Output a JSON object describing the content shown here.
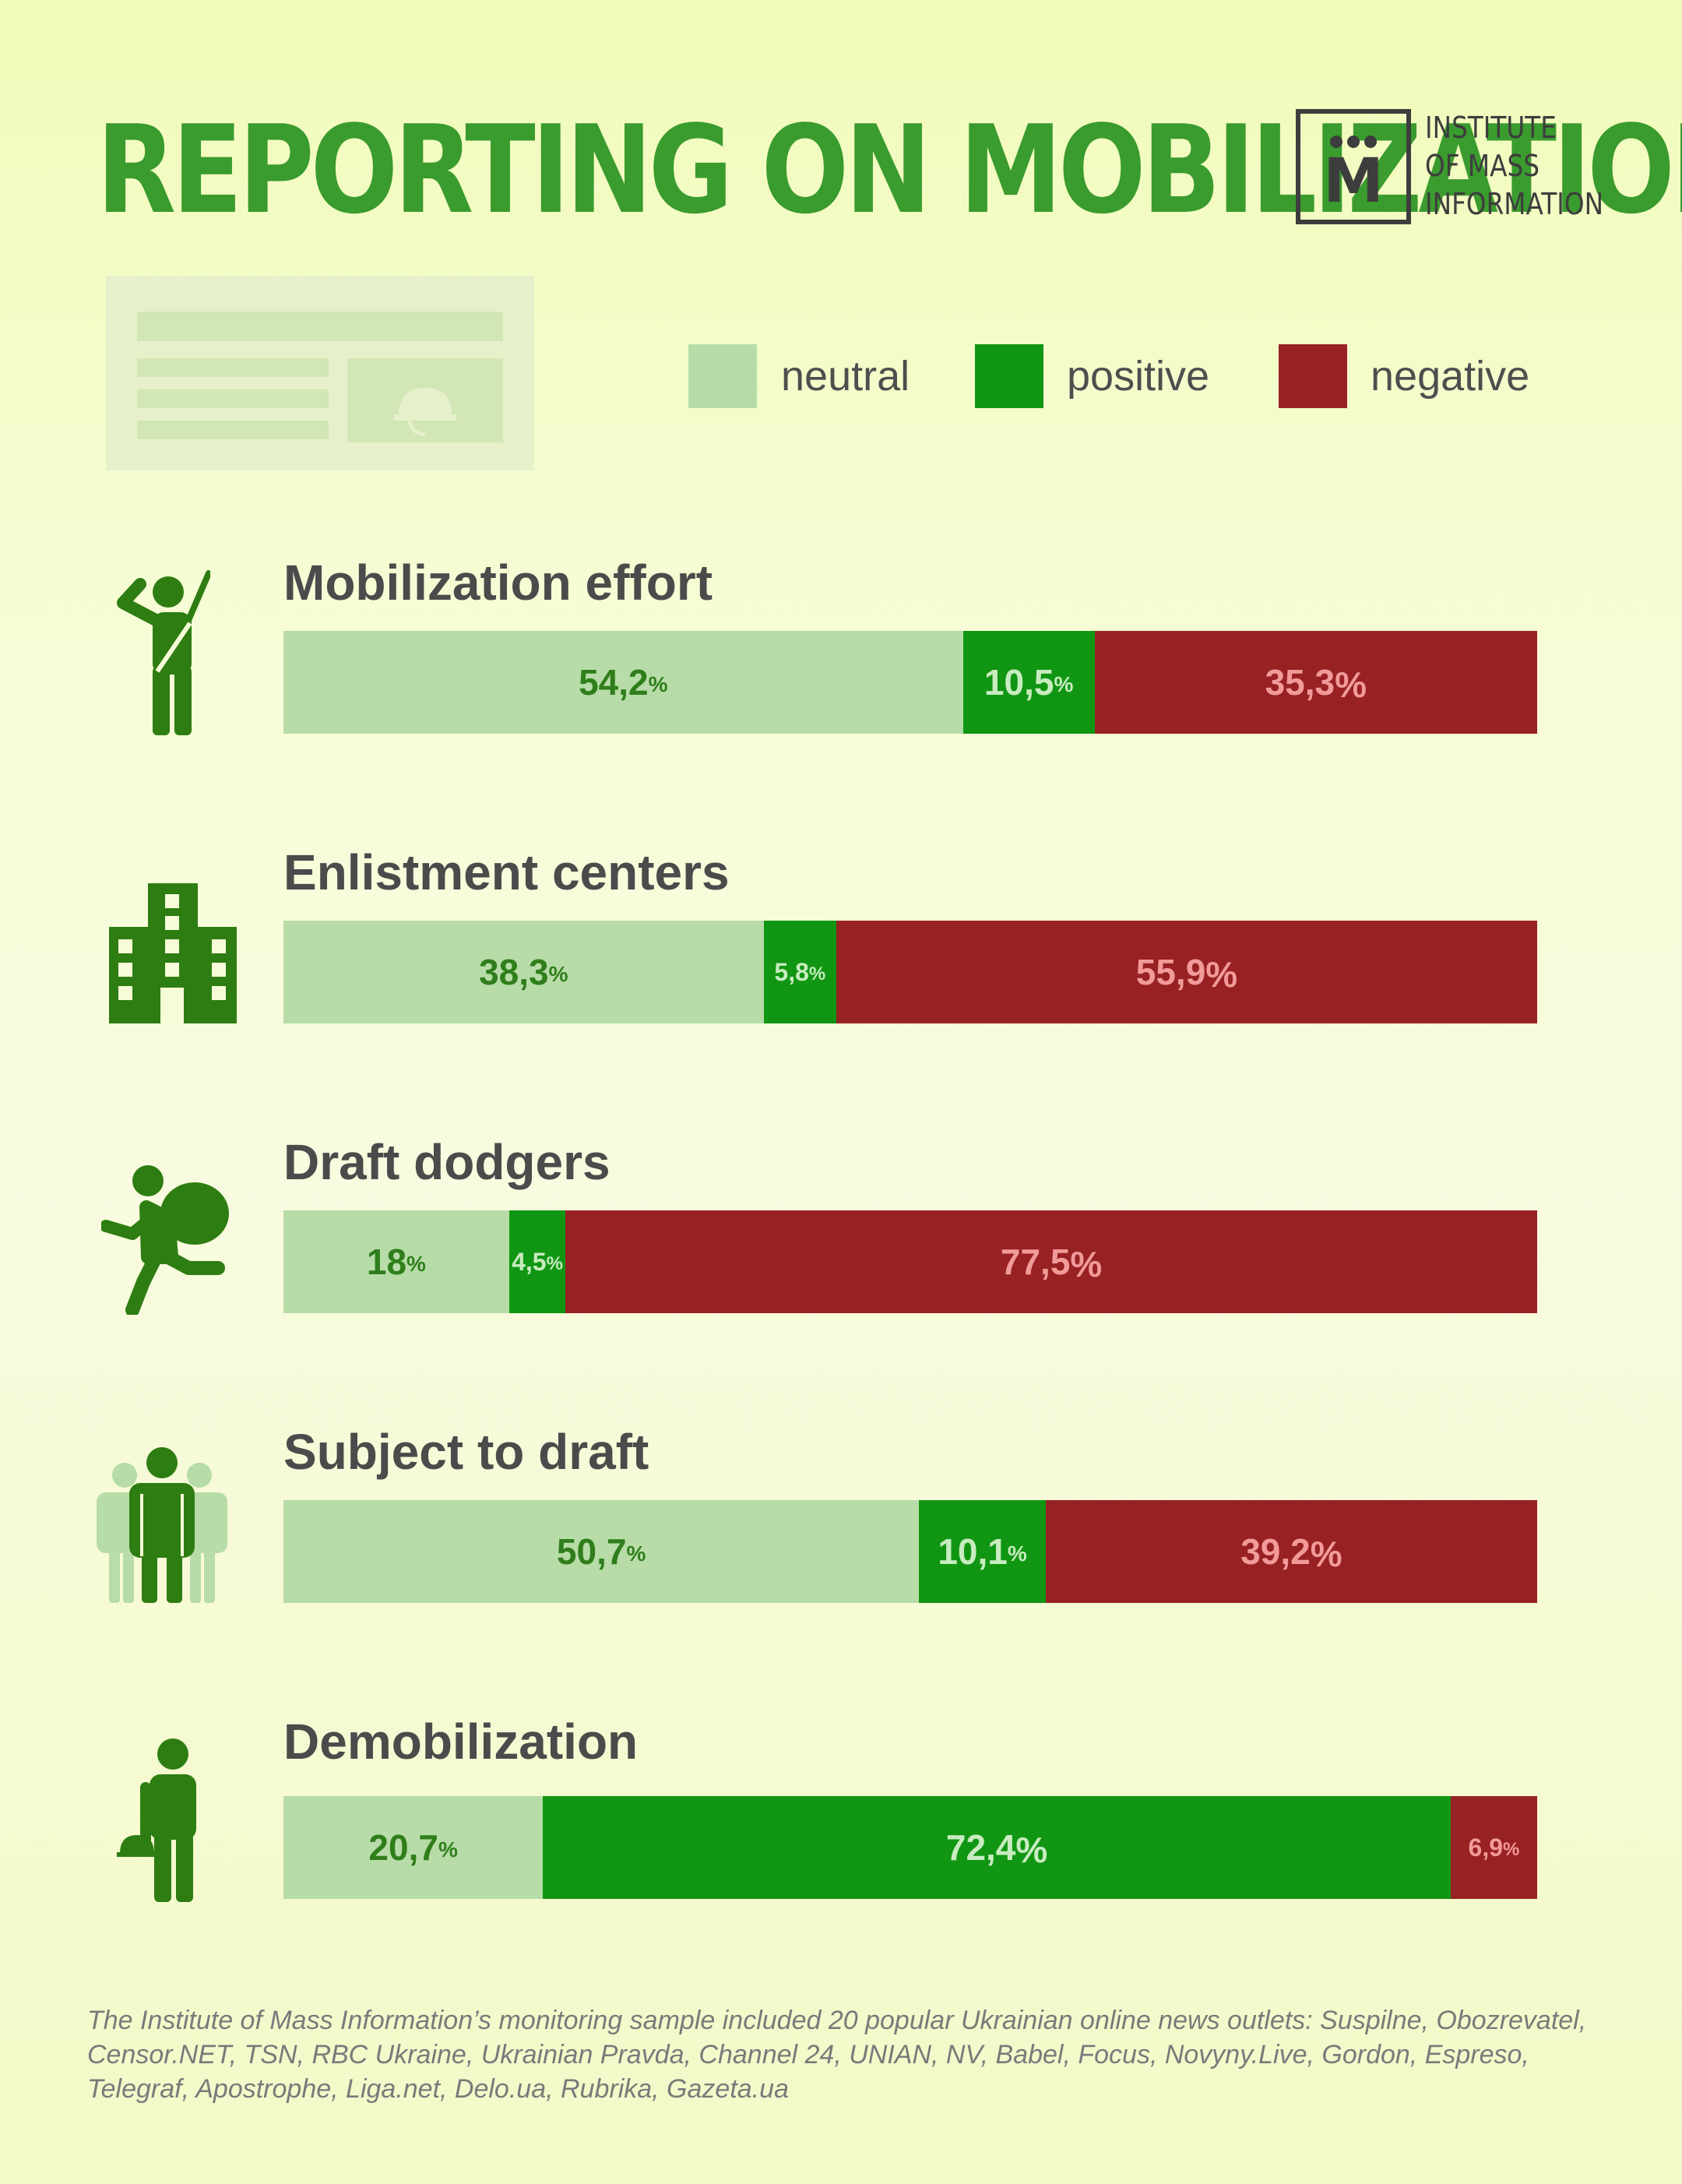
{
  "title": "REPORTING ON MOBILIZATION",
  "logo": {
    "mark": "M",
    "lines": [
      "INSTITUTE",
      "OF MASS",
      "INFORMATION"
    ]
  },
  "colors": {
    "title": "#3a9b2e",
    "neutral": "#b7dca8",
    "positive": "#119613",
    "negative": "#982123",
    "icon": "#2e7d12",
    "background": "#f6fcd7"
  },
  "legend": [
    {
      "key": "neutral",
      "label": "neutral"
    },
    {
      "key": "positive",
      "label": "positive"
    },
    {
      "key": "negative",
      "label": "negative"
    }
  ],
  "chart_data": {
    "type": "bar",
    "stacked": true,
    "orientation": "horizontal",
    "unit": "%",
    "series_keys": [
      "neutral",
      "positive",
      "negative"
    ],
    "rows": [
      {
        "category": "Mobilization effort",
        "icon": "saluting-soldier-icon",
        "values": [
          54.2,
          10.5,
          35.3
        ],
        "labels": [
          "54,2",
          "10,5",
          "35,3"
        ]
      },
      {
        "category": "Enlistment centers",
        "icon": "building-icon",
        "values": [
          38.3,
          5.8,
          55.9
        ],
        "labels": [
          "38,3",
          "5,8",
          "55,9"
        ]
      },
      {
        "category": "Draft dodgers",
        "icon": "running-man-with-bag-icon",
        "values": [
          18,
          4.5,
          77.5
        ],
        "labels": [
          "18",
          "4,5",
          "77,5"
        ]
      },
      {
        "category": "Subject to draft",
        "icon": "group-of-people-icon",
        "values": [
          50.7,
          10.1,
          39.2
        ],
        "labels": [
          "50,7",
          "10,1",
          "39,2"
        ]
      },
      {
        "category": "Demobilization",
        "icon": "man-holding-helmet-icon",
        "values": [
          20.7,
          72.4,
          6.9
        ],
        "labels": [
          "20,7",
          "72,4",
          "6,9"
        ]
      }
    ]
  },
  "footnote": "The Institute of Mass Information’s monitoring sample included 20 popular Ukrainian online news outlets: Suspilne, Obozrevatel, Censor.NET, TSN, RBC Ukraine, Ukrainian Pravda, Channel 24, UNIAN, NV, Babel, Focus, Novyny.Live, Gordon, Espreso, Telegraf, Apostrophe, Liga.net, Delo.ua, Rubrika, Gazeta.ua"
}
